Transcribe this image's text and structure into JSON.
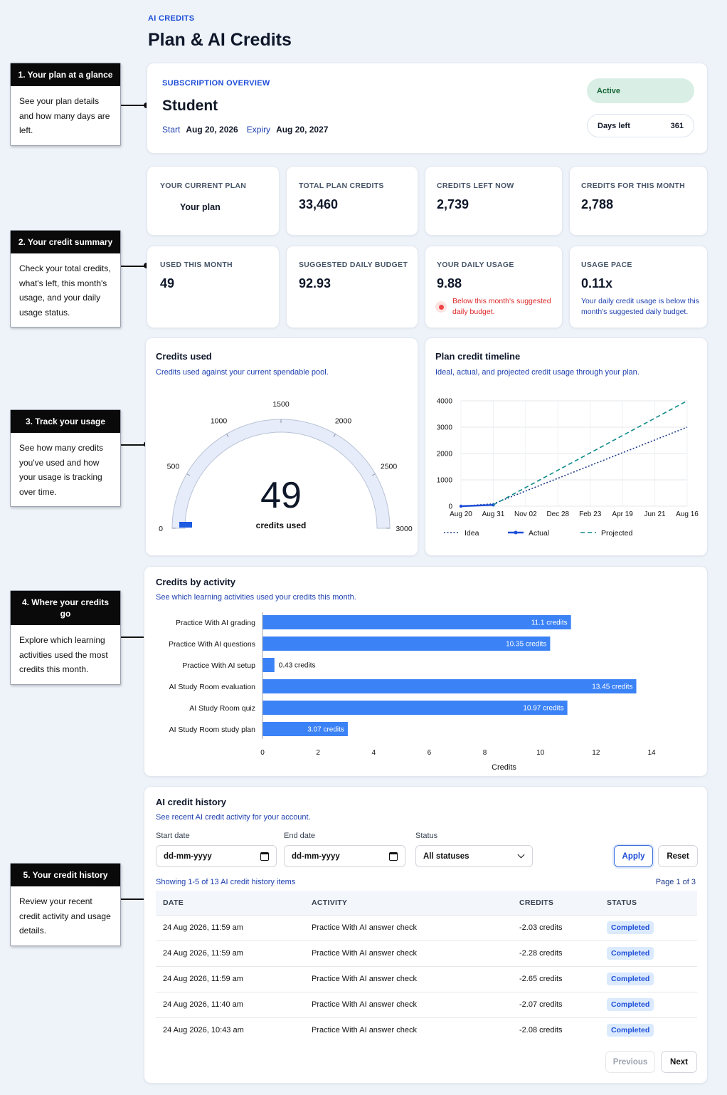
{
  "header": {
    "eyebrow": "AI CREDITS",
    "title": "Plan & AI Credits"
  },
  "callouts": [
    {
      "title": "1. Your plan at a glance",
      "body": "See your plan details and how many days are left."
    },
    {
      "title": "2. Your credit summary",
      "body": "Check your total credits, what's left, this month's usage, and your daily usage status."
    },
    {
      "title": "3. Track your usage",
      "body": "See how many credits you've used and how your usage is tracking over time."
    },
    {
      "title": "4. Where your credits go",
      "body": "Explore which learning activities used the most credits this month."
    },
    {
      "title": "5. Your credit history",
      "body": "Review your recent credit activity and usage details."
    }
  ],
  "subscription": {
    "label": "SUBSCRIPTION OVERVIEW",
    "plan_name": "Student",
    "start_label": "Start",
    "start_date": "Aug 20, 2026",
    "expiry_label": "Expiry",
    "expiry_date": "Aug 20, 2027",
    "status": "Active",
    "days_left_label": "Days left",
    "days_left": "361",
    "status_color": "#d9efe6"
  },
  "stats_row1": [
    {
      "label": "YOUR CURRENT PLAN",
      "value": "Your plan"
    },
    {
      "label": "TOTAL PLAN CREDITS",
      "value": "33,460"
    },
    {
      "label": "CREDITS LEFT NOW",
      "value": "2,739"
    },
    {
      "label": "CREDITS FOR THIS MONTH",
      "value": "2,788"
    }
  ],
  "stats_row2": [
    {
      "label": "USED THIS MONTH",
      "value": "49",
      "note": ""
    },
    {
      "label": "SUGGESTED DAILY BUDGET",
      "value": "92.93",
      "note": ""
    },
    {
      "label": "YOUR DAILY USAGE",
      "value": "9.88",
      "note": "Below this month's suggested daily budget."
    },
    {
      "label": "USAGE PACE",
      "value": "0.11x",
      "note": "Your daily credit usage is below this month's suggested daily budget."
    }
  ],
  "gauge": {
    "title": "Credits used",
    "subtitle": "Credits used against your current spendable pool.",
    "value_text": "49",
    "caption": "credits used",
    "ticks": [
      "0",
      "500",
      "1000",
      "1500",
      "2000",
      "2500",
      "3000"
    ]
  },
  "timeline": {
    "title": "Plan credit timeline",
    "subtitle": "Ideal, actual, and projected credit usage through your plan.",
    "legend": [
      "Idea",
      "Actual",
      "Projected"
    ]
  },
  "activity": {
    "title": "Credits by activity",
    "subtitle": "See which learning activities used your credits this month.",
    "xlabel": "Credits"
  },
  "history": {
    "title": "AI credit history",
    "subtitle": "See recent AI credit activity for your account.",
    "start_label": "Start date",
    "start_placeholder": "dd-mm-yyyy",
    "end_label": "End date",
    "end_placeholder": "dd-mm-yyyy",
    "status_label": "Status",
    "status_value": "All statuses",
    "apply": "Apply",
    "reset": "Reset",
    "showing": "Showing 1-5 of 13 AI credit history items",
    "page": "Page 1 of 3",
    "columns": [
      "DATE",
      "ACTIVITY",
      "CREDITS",
      "STATUS"
    ],
    "rows": [
      [
        "24 Aug 2026, 11:59 am",
        "Practice With AI answer check",
        "-2.03 credits",
        "Completed"
      ],
      [
        "24 Aug 2026, 11:59 am",
        "Practice With AI answer check",
        "-2.28 credits",
        "Completed"
      ],
      [
        "24 Aug 2026, 11:59 am",
        "Practice With AI answer check",
        "-2.65 credits",
        "Completed"
      ],
      [
        "24 Aug 2026, 11:40 am",
        "Practice With AI answer check",
        "-2.07 credits",
        "Completed"
      ],
      [
        "24 Aug 2026, 10:43 am",
        "Practice With AI answer check",
        "-2.08 credits",
        "Completed"
      ]
    ],
    "prev": "Previous",
    "next": "Next"
  },
  "chart_data": [
    {
      "type": "gauge",
      "title": "Credits used",
      "value": 49,
      "range": [
        0,
        3000
      ],
      "tick_labels": [
        "0",
        "500",
        "1000",
        "1500",
        "2000",
        "2500",
        "3000"
      ],
      "fill_color": "#1d5be0"
    },
    {
      "type": "line",
      "title": "Plan credit timeline",
      "x": [
        "Aug 20",
        "Aug 31",
        "Nov 02",
        "Dec 28",
        "Feb 23",
        "Apr 19",
        "Jun 21",
        "Aug 16"
      ],
      "ylim": [
        0,
        4000
      ],
      "yticks": [
        "0",
        "1000",
        "2000",
        "3000",
        "4000"
      ],
      "grid": true,
      "legend_position": "bottom",
      "series": [
        {
          "name": "Idea",
          "style": "dotted",
          "color": "#1e3a8a",
          "points": [
            [
              "Aug 20",
              0
            ],
            [
              "Aug 31",
              90
            ],
            [
              "Aug 16",
              3000
            ]
          ]
        },
        {
          "name": "Actual",
          "style": "solid",
          "color": "#1d4ed8",
          "points": [
            [
              "Aug 20",
              0
            ],
            [
              "Aug 31",
              49
            ]
          ]
        },
        {
          "name": "Projected",
          "style": "dashed",
          "color": "#0f8a8a",
          "points": [
            [
              "Aug 31",
              49
            ],
            [
              "Aug 16",
              4000
            ]
          ]
        }
      ]
    },
    {
      "type": "bar",
      "orientation": "horizontal",
      "title": "Credits by activity",
      "xlabel": "Credits",
      "xlim": [
        0,
        14
      ],
      "xticks": [
        "0",
        "2",
        "4",
        "6",
        "8",
        "10",
        "12",
        "14"
      ],
      "categories": [
        "Practice With AI grading",
        "Practice With AI questions",
        "Practice With AI setup",
        "AI Study Room evaluation",
        "AI Study Room quiz",
        "AI Study Room study plan"
      ],
      "values": [
        11.1,
        10.35,
        0.43,
        13.45,
        10.97,
        3.07
      ],
      "labels": [
        "11.1 credits",
        "10.35 credits",
        "0.43 credits",
        "13.45 credits",
        "10.97 credits",
        "3.07 credits"
      ],
      "color": "#3b82f6"
    }
  ]
}
